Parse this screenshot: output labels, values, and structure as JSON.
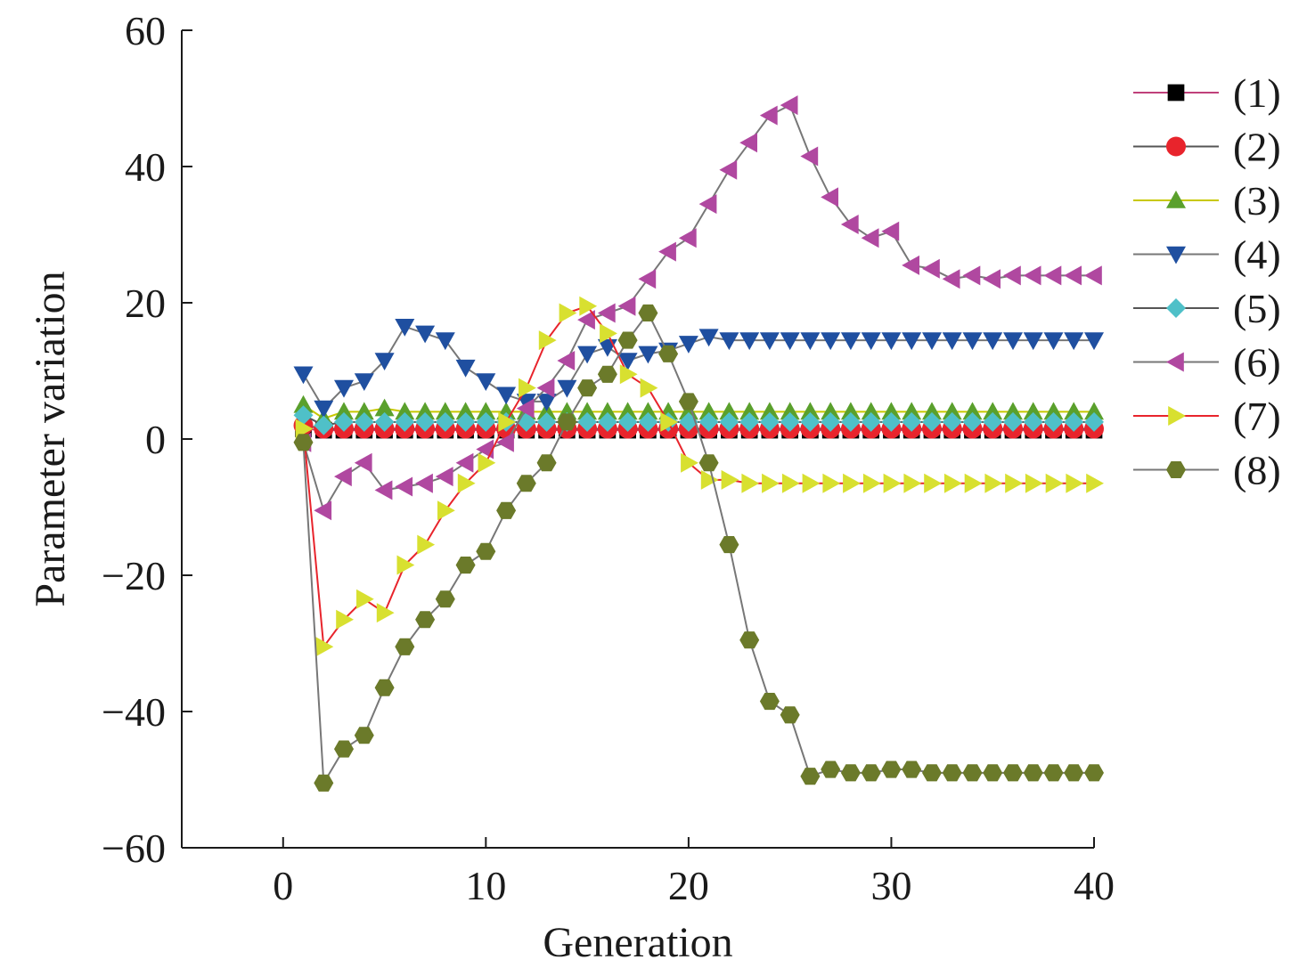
{
  "chart_data": {
    "type": "line",
    "xlabel": "Generation",
    "ylabel": "Parameter variation",
    "xlim": [
      -5,
      40
    ],
    "ylim": [
      -60,
      60
    ],
    "xticks": [
      0,
      10,
      20,
      30,
      40
    ],
    "yticks": [
      -60,
      -40,
      -20,
      0,
      20,
      40,
      60
    ],
    "x_tick_labels": [
      "0",
      "10",
      "20",
      "30",
      "40"
    ],
    "y_tick_labels": [
      "−60",
      "−40",
      "−20",
      "0",
      "20",
      "40",
      "60"
    ],
    "grid": false,
    "legend_position": "right",
    "x": [
      1,
      2,
      3,
      4,
      5,
      6,
      7,
      8,
      9,
      10,
      11,
      12,
      13,
      14,
      15,
      16,
      17,
      18,
      19,
      20,
      21,
      22,
      23,
      24,
      25,
      26,
      27,
      28,
      29,
      30,
      31,
      32,
      33,
      34,
      35,
      36,
      37,
      38,
      39,
      40
    ],
    "series": [
      {
        "name": "(1)",
        "marker": "square",
        "color": "#000000",
        "line_color": "#c0407a",
        "values": [
          1.5,
          1.3,
          1.3,
          1.3,
          1.3,
          1.3,
          1.3,
          1.3,
          1.3,
          1.3,
          1.3,
          1.3,
          1.3,
          1.3,
          1.3,
          1.3,
          1.3,
          1.3,
          1.3,
          1.3,
          1.3,
          1.3,
          1.3,
          1.3,
          1.3,
          1.3,
          1.3,
          1.3,
          1.3,
          1.3,
          1.3,
          1.3,
          1.3,
          1.3,
          1.3,
          1.3,
          1.3,
          1.3,
          1.3,
          1.3
        ]
      },
      {
        "name": "(2)",
        "marker": "circle",
        "color": "#e8242c",
        "line_color": "#555555",
        "values": [
          2.0,
          1.5,
          1.5,
          1.5,
          1.5,
          1.5,
          1.5,
          1.5,
          1.5,
          1.5,
          1.5,
          1.5,
          1.5,
          1.5,
          1.5,
          1.5,
          1.5,
          1.5,
          1.5,
          1.5,
          1.5,
          1.5,
          1.5,
          1.5,
          1.5,
          1.5,
          1.5,
          1.5,
          1.5,
          1.5,
          1.5,
          1.5,
          1.5,
          1.5,
          1.5,
          1.5,
          1.5,
          1.5,
          1.5,
          1.5
        ]
      },
      {
        "name": "(3)",
        "marker": "triangle-up",
        "color": "#5aa02c",
        "line_color": "#c8c800",
        "values": [
          5.0,
          3.0,
          4.0,
          4.0,
          4.5,
          4.0,
          4.0,
          4.0,
          4.0,
          4.0,
          4.0,
          4.0,
          4.0,
          4.0,
          4.0,
          4.0,
          4.0,
          4.0,
          4.0,
          4.0,
          4.0,
          4.0,
          4.0,
          4.0,
          4.0,
          4.0,
          4.0,
          4.0,
          4.0,
          4.0,
          4.0,
          4.0,
          4.0,
          4.0,
          4.0,
          4.0,
          4.0,
          4.0,
          4.0,
          4.0
        ]
      },
      {
        "name": "(4)",
        "marker": "triangle-down",
        "color": "#1f4fa0",
        "line_color": "#777777",
        "values": [
          9.5,
          4.5,
          7.5,
          8.5,
          11.5,
          16.5,
          15.5,
          14.5,
          10.5,
          8.5,
          6.5,
          5.5,
          5.5,
          7.5,
          12.5,
          13.5,
          11.5,
          12.5,
          13.0,
          14.0,
          15.0,
          14.5,
          14.5,
          14.5,
          14.5,
          14.5,
          14.5,
          14.5,
          14.5,
          14.5,
          14.5,
          14.5,
          14.5,
          14.5,
          14.5,
          14.5,
          14.5,
          14.5,
          14.5,
          14.5
        ]
      },
      {
        "name": "(5)",
        "marker": "diamond",
        "color": "#4fc0c8",
        "line_color": "#555555",
        "values": [
          3.5,
          2.0,
          2.5,
          2.5,
          2.5,
          2.5,
          2.5,
          2.5,
          2.5,
          2.5,
          2.5,
          2.5,
          2.5,
          2.5,
          2.5,
          2.5,
          2.5,
          2.5,
          2.5,
          2.5,
          2.5,
          2.5,
          2.5,
          2.5,
          2.5,
          2.5,
          2.5,
          2.5,
          2.5,
          2.5,
          2.5,
          2.5,
          2.5,
          2.5,
          2.5,
          2.5,
          2.5,
          2.5,
          2.5,
          2.5
        ]
      },
      {
        "name": "(6)",
        "marker": "triangle-left",
        "color": "#b048a0",
        "line_color": "#777777",
        "values": [
          -0.5,
          -10.5,
          -5.5,
          -3.5,
          -7.5,
          -7.0,
          -6.5,
          -5.5,
          -3.5,
          -1.5,
          -0.5,
          4.5,
          7.5,
          11.5,
          17.5,
          18.5,
          19.5,
          23.5,
          27.5,
          29.5,
          34.5,
          39.5,
          43.5,
          47.5,
          49.0,
          41.5,
          35.5,
          31.5,
          29.5,
          30.5,
          25.5,
          25.0,
          23.5,
          24.0,
          23.5,
          24.0,
          24.0,
          24.0,
          24.0,
          24.0
        ]
      },
      {
        "name": "(7)",
        "marker": "triangle-right",
        "color": "#d8e030",
        "line_color": "#e8242c",
        "values": [
          1.5,
          -30.5,
          -26.5,
          -23.5,
          -25.5,
          -18.5,
          -15.5,
          -10.5,
          -6.5,
          -3.5,
          2.5,
          7.5,
          14.5,
          18.5,
          19.5,
          15.5,
          9.5,
          7.5,
          2.5,
          -3.5,
          -6.0,
          -6.0,
          -6.5,
          -6.5,
          -6.5,
          -6.5,
          -6.5,
          -6.5,
          -6.5,
          -6.5,
          -6.5,
          -6.5,
          -6.5,
          -6.5,
          -6.5,
          -6.5,
          -6.5,
          -6.5,
          -6.5,
          -6.5
        ]
      },
      {
        "name": "(8)",
        "marker": "hexagon",
        "color": "#6b7a2a",
        "line_color": "#777777",
        "values": [
          -0.5,
          -50.5,
          -45.5,
          -43.5,
          -36.5,
          -30.5,
          -26.5,
          -23.5,
          -18.5,
          -16.5,
          -10.5,
          -6.5,
          -3.5,
          2.5,
          7.5,
          9.5,
          14.5,
          18.5,
          12.5,
          5.5,
          -3.5,
          -15.5,
          -29.5,
          -38.5,
          -40.5,
          -49.5,
          -48.5,
          -49.0,
          -49.0,
          -48.5,
          -48.5,
          -49.0,
          -49.0,
          -49.0,
          -49.0,
          -49.0,
          -49.0,
          -49.0,
          -49.0,
          -49.0
        ]
      }
    ]
  }
}
